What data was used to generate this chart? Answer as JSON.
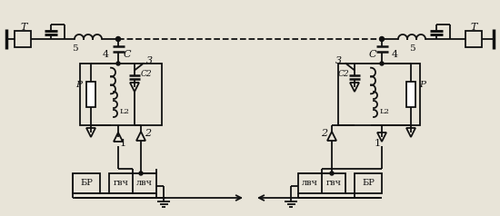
{
  "bg_color": "#e8e4d8",
  "line_color": "#111111",
  "figsize": [
    5.5,
    2.38
  ],
  "dpi": 100,
  "labels": {
    "T": "Т",
    "5": "5",
    "4": "4",
    "C": "С",
    "3": "3",
    "C2": "С2",
    "2": "2",
    "1": "1",
    "P": "Р",
    "L2": "L2",
    "BR": "БР",
    "GVCh": "гвч",
    "LVCh": "лвч"
  }
}
